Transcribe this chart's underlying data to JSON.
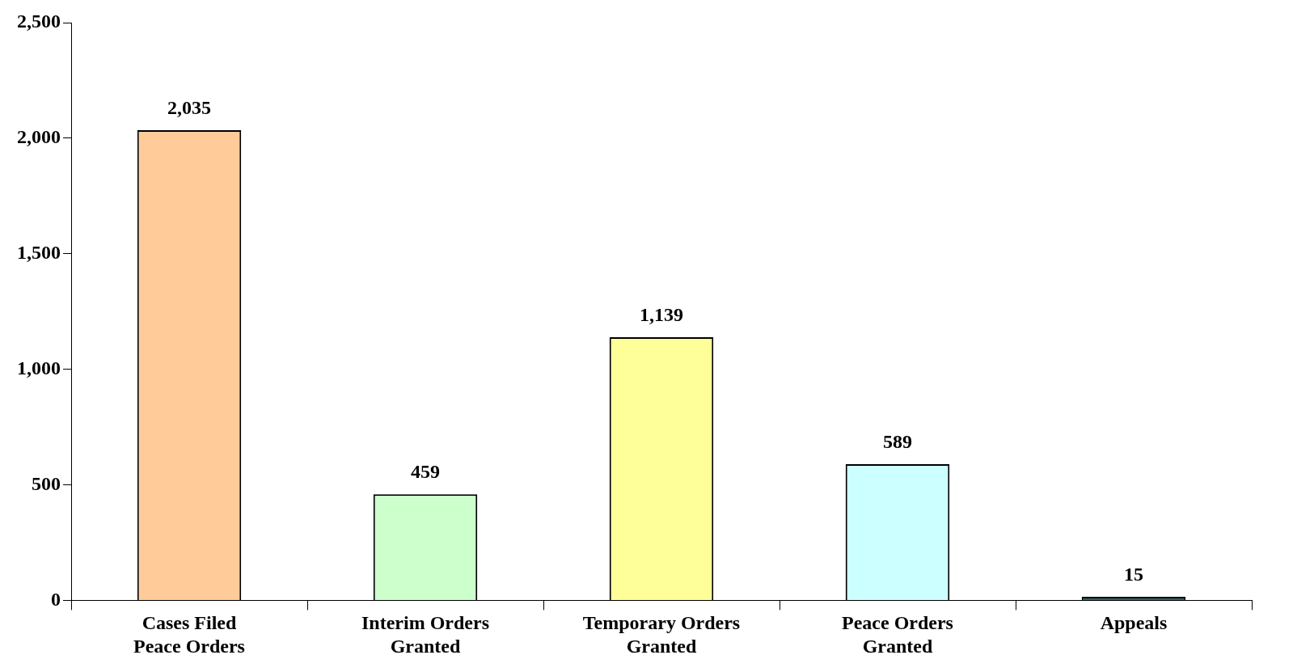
{
  "chart_data": {
    "type": "bar",
    "categories": [
      "Cases Filed Peace Orders",
      "Interim Orders Granted",
      "Temporary Orders Granted",
      "Peace Orders Granted",
      "Appeals"
    ],
    "values": [
      2035,
      459,
      1139,
      589,
      15
    ],
    "value_labels": [
      "2,035",
      "459",
      "1,139",
      "589",
      "15"
    ],
    "colors": [
      "#ffcc99",
      "#ccffcc",
      "#ffff99",
      "#ccffff",
      "#336666"
    ],
    "ylim": [
      0,
      2500
    ],
    "yticks": [
      {
        "value": 0,
        "label": "0"
      },
      {
        "value": 500,
        "label": "500"
      },
      {
        "value": 1000,
        "label": "1,000"
      },
      {
        "value": 1500,
        "label": "1,500"
      },
      {
        "value": 2000,
        "label": "2,000"
      },
      {
        "value": 2500,
        "label": "2,500"
      }
    ],
    "grid": false,
    "legend": false
  }
}
